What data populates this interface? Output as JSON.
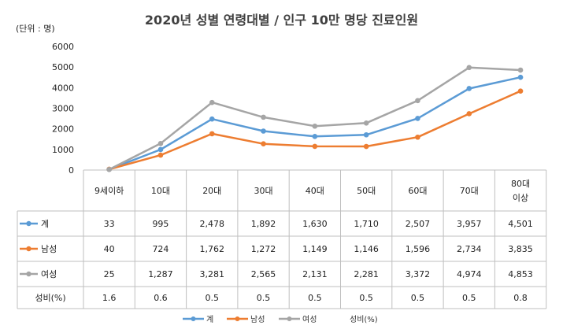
{
  "chart_data": {
    "type": "line",
    "title": "2020년 성별 연령대별 / 인구 10만 명당 진료인원",
    "unit_label": "(단위 : 명)",
    "categories": [
      "9세이하",
      "10대",
      "20대",
      "30대",
      "40대",
      "50대",
      "60대",
      "70대",
      "80대 이상"
    ],
    "category_lines": [
      [
        "9세이하"
      ],
      [
        "10대"
      ],
      [
        "20대"
      ],
      [
        "30대"
      ],
      [
        "40대"
      ],
      [
        "50대"
      ],
      [
        "60대"
      ],
      [
        "70대"
      ],
      [
        "80대",
        "이상"
      ]
    ],
    "yticks": [
      "0",
      "1000",
      "2000",
      "3000",
      "4000",
      "5000",
      "6000"
    ],
    "ylim": [
      0,
      6000
    ],
    "series": [
      {
        "name": "계",
        "color": "#5b9bd5",
        "values": [
          33,
          995,
          2478,
          1892,
          1630,
          1710,
          2507,
          3957,
          4501
        ],
        "labels": [
          "33",
          "995",
          "2,478",
          "1,892",
          "1,630",
          "1,710",
          "2,507",
          "3,957",
          "4,501"
        ]
      },
      {
        "name": "남성",
        "color": "#ed7d31",
        "values": [
          40,
          724,
          1762,
          1272,
          1149,
          1146,
          1596,
          2734,
          3835
        ],
        "labels": [
          "40",
          "724",
          "1,762",
          "1,272",
          "1,149",
          "1,146",
          "1,596",
          "2,734",
          "3,835"
        ]
      },
      {
        "name": "여성",
        "color": "#a5a5a5",
        "values": [
          25,
          1287,
          3281,
          2565,
          2131,
          2281,
          3372,
          4974,
          4853
        ],
        "labels": [
          "25",
          "1,287",
          "3,281",
          "2,565",
          "2,131",
          "2,281",
          "3,372",
          "4,974",
          "4,853"
        ]
      }
    ],
    "ratio_row": {
      "name": "성비(%)",
      "values": [
        1.6,
        0.6,
        0.5,
        0.5,
        0.5,
        0.5,
        0.5,
        0.5,
        0.8
      ],
      "labels": [
        "1.6",
        "0.6",
        "0.5",
        "0.5",
        "0.5",
        "0.5",
        "0.5",
        "0.5",
        "0.8"
      ]
    },
    "grid": false,
    "legend": "bottom"
  }
}
